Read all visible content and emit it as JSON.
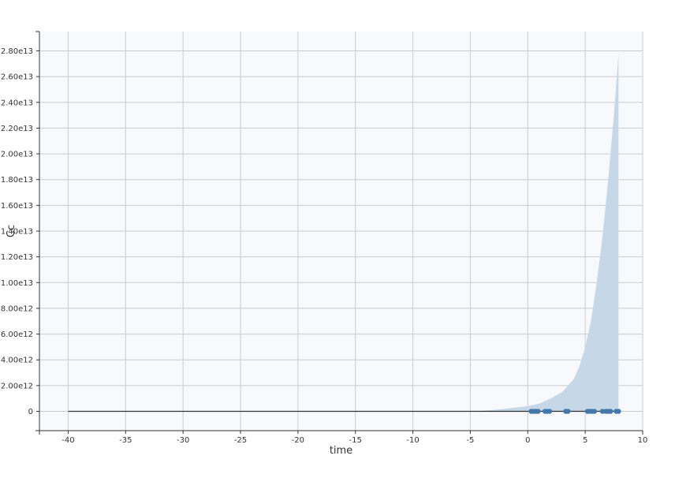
{
  "chart_data": {
    "type": "area",
    "title": "",
    "xlabel": "time",
    "ylabel": "Cc",
    "xlim": [
      -42.5,
      10
    ],
    "ylim": [
      -1500000000000.0,
      29500000000000.0
    ],
    "grid": true,
    "x_ticks": [
      -40,
      -35,
      -30,
      -25,
      -20,
      -15,
      -10,
      -5,
      0,
      5,
      10
    ],
    "x_tick_labels": [
      "-40",
      "-35",
      "-30",
      "-25",
      "-20",
      "-15",
      "-10",
      "-5",
      "0",
      "5",
      "10"
    ],
    "y_ticks": [
      0,
      2000000000000.0,
      4000000000000.0,
      6000000000000.0,
      8000000000000.0,
      10000000000000.0,
      12000000000000.0,
      14000000000000.0,
      16000000000000.0,
      18000000000000.0,
      20000000000000.0,
      22000000000000.0,
      24000000000000.0,
      26000000000000.0,
      28000000000000.0
    ],
    "y_tick_labels": [
      "0",
      "2.00e12",
      "4.00e12",
      "6.00e12",
      "8.00e12",
      "1.00e13",
      "1.20e13",
      "1.40e13",
      "1.60e13",
      "1.80e13",
      "2.00e13",
      "2.20e13",
      "2.40e13",
      "2.60e13",
      "2.80e13"
    ],
    "colors": {
      "plot_background": "#f8f9fd",
      "band_fill": "#c6d7e8",
      "median_line": "#333333",
      "observations": "#4477aa",
      "grid": "#c8cbd0"
    },
    "band": {
      "x": [
        -40,
        -10,
        -6,
        -4,
        -3,
        -2,
        -1,
        0,
        1,
        2,
        3,
        4,
        4.5,
        5,
        5.5,
        6,
        6.5,
        7,
        7.5,
        7.9
      ],
      "upper": [
        0,
        0,
        10000000000.0,
        50000000000.0,
        100000000000.0,
        200000000000.0,
        300000000000.0,
        400000000000.0,
        600000000000.0,
        1000000000000.0,
        1500000000000.0,
        2500000000000.0,
        3500000000000.0,
        5000000000000.0,
        7000000000000.0,
        10000000000000.0,
        13500000000000.0,
        18000000000000.0,
        23000000000000.0,
        27800000000000.0
      ],
      "lower": [
        0,
        0,
        0,
        0,
        0,
        0,
        0,
        0,
        0,
        0,
        0,
        0,
        0,
        0,
        0,
        0,
        0,
        0,
        0,
        0
      ]
    },
    "median": {
      "x": [
        -40,
        7.9
      ],
      "y": [
        0,
        0
      ]
    },
    "observations": {
      "x": [
        0.3,
        0.5,
        0.7,
        0.9,
        1.5,
        1.7,
        1.9,
        3.3,
        3.5,
        5.2,
        5.4,
        5.6,
        5.8,
        6.5,
        6.8,
        7.0,
        7.2,
        7.7,
        7.9
      ],
      "y": [
        0,
        0,
        0,
        0,
        0,
        0,
        0,
        0,
        0,
        0,
        0,
        0,
        0,
        0,
        0,
        0,
        0,
        0,
        0
      ]
    }
  }
}
